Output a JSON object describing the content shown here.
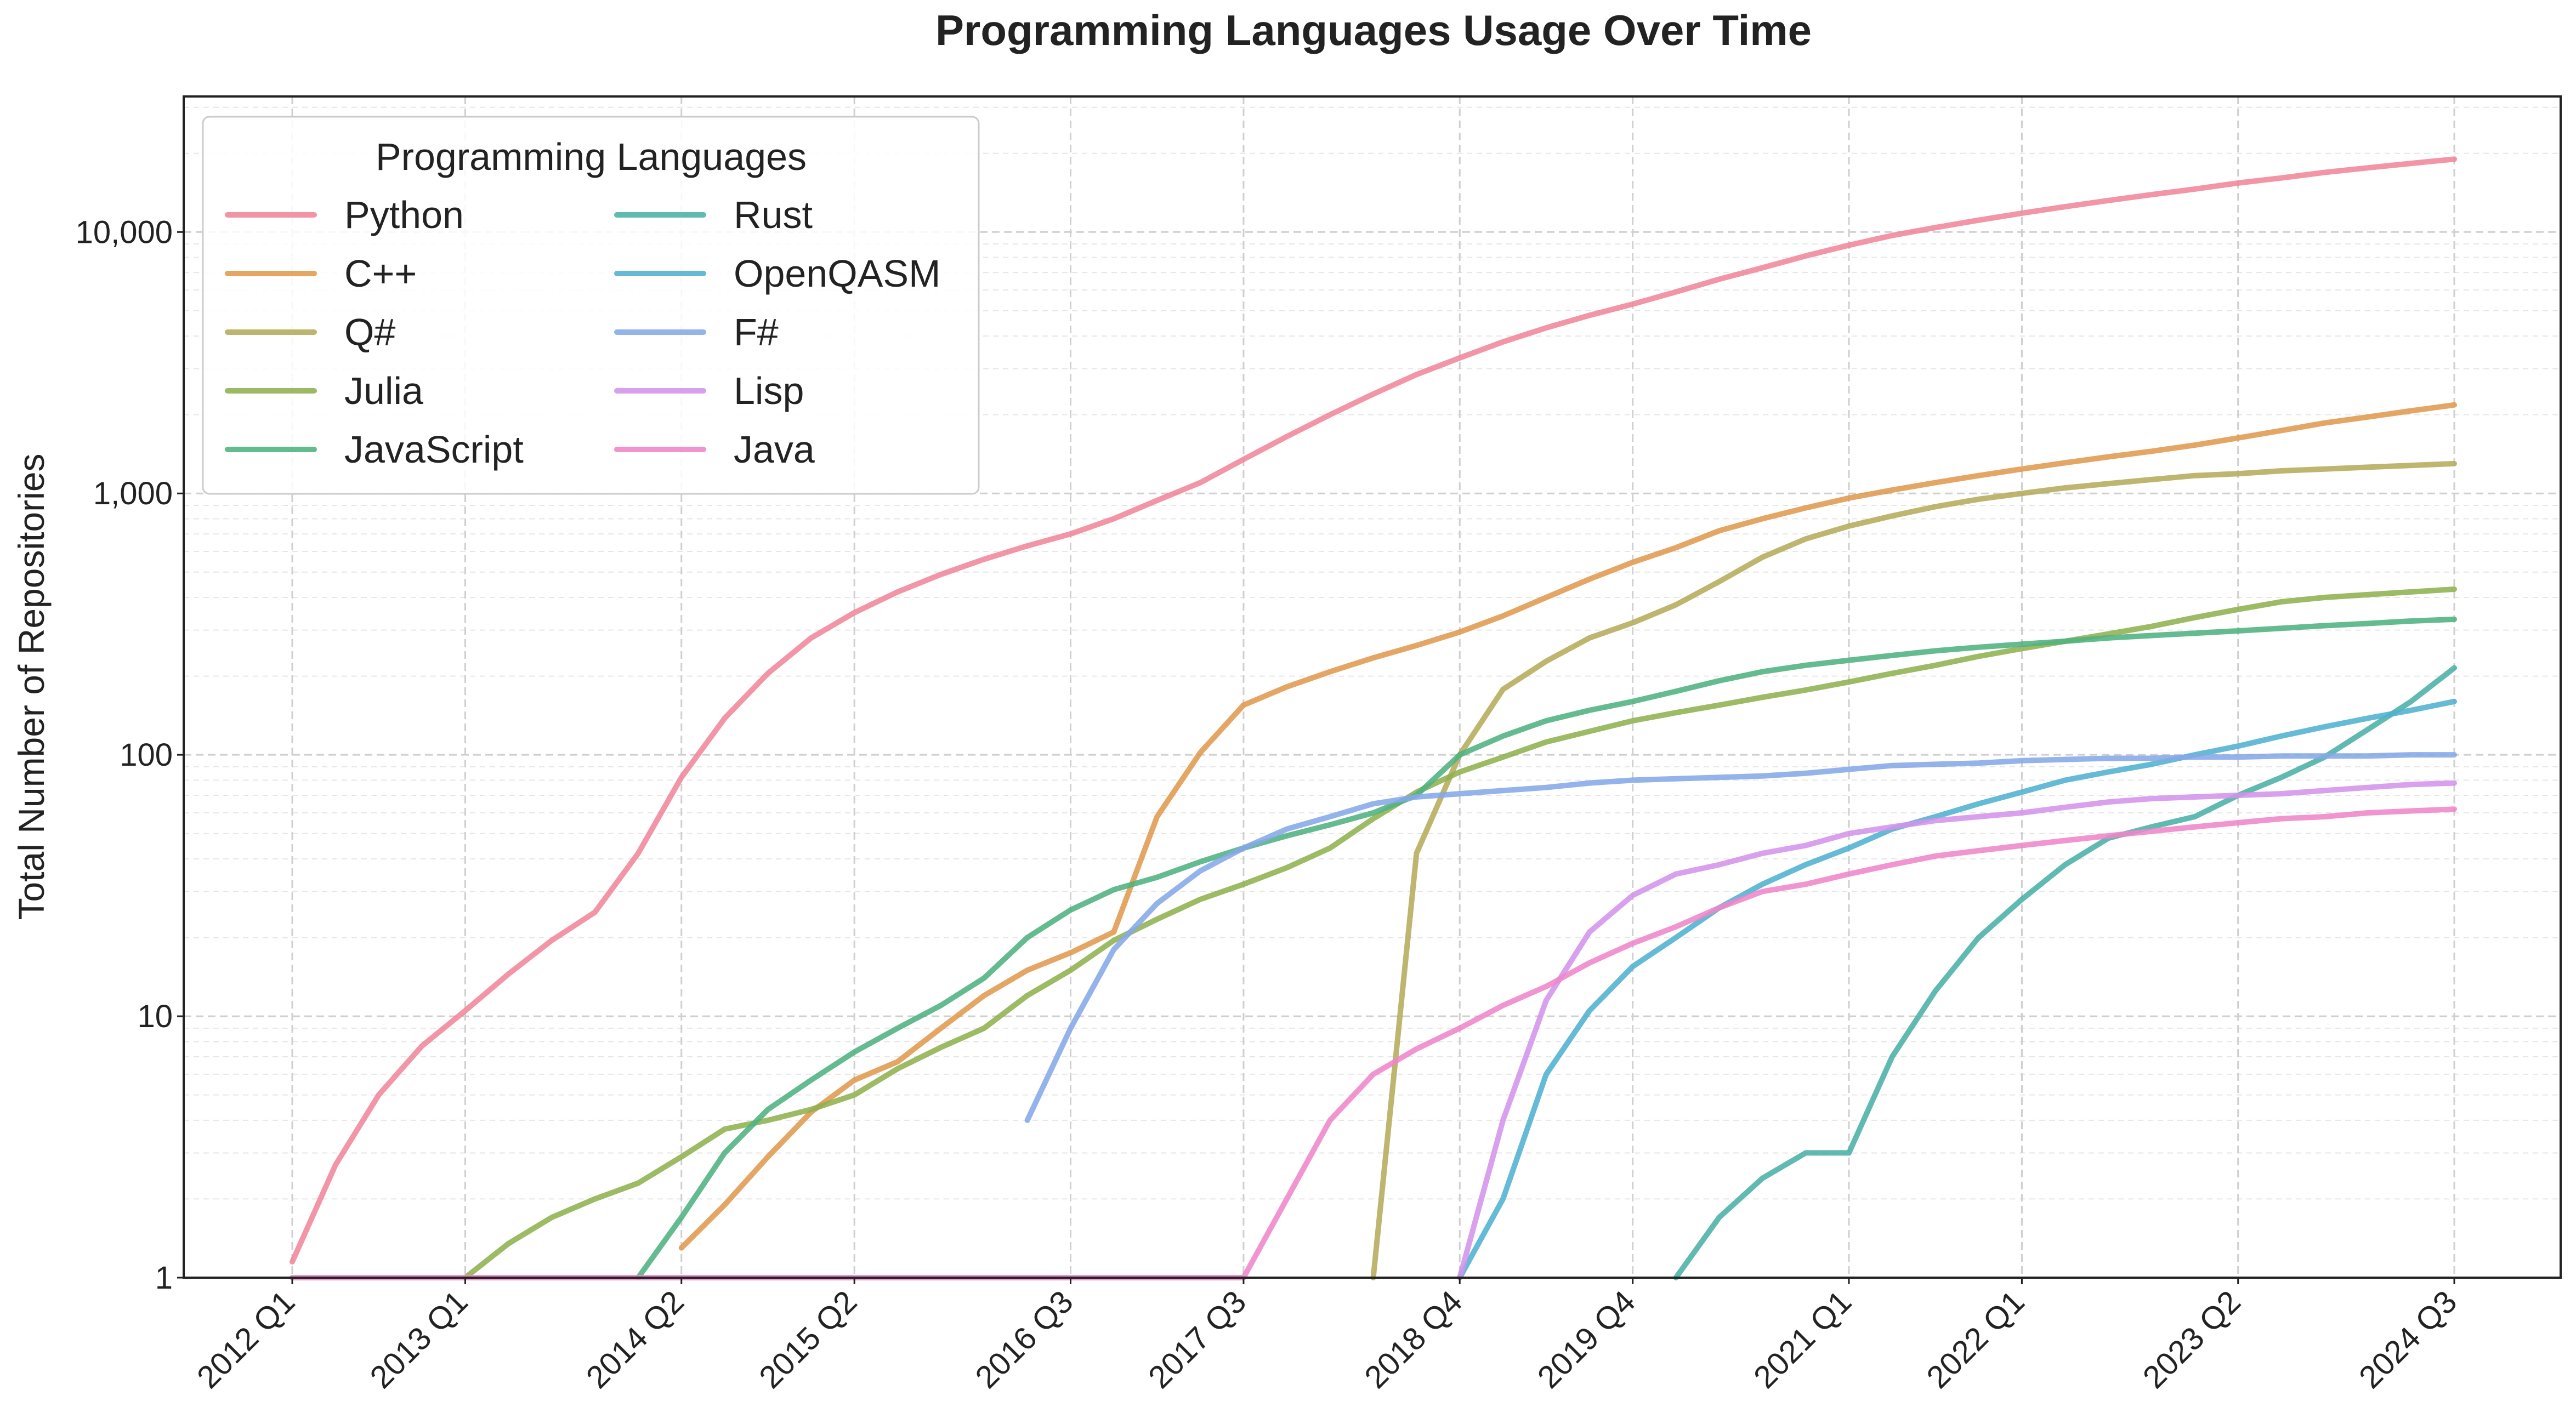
{
  "chart_data": {
    "type": "line",
    "title": "Programming Languages Usage Over Time",
    "xlabel": "",
    "ylabel": "Total Number of Repositories",
    "y_scale": "log",
    "ylim": [
      1,
      33000
    ],
    "grid": true,
    "legend": {
      "title": "Programming Languages",
      "placement": "top-left",
      "columns": 2
    },
    "x_tick_labels": [
      "2012 Q1",
      "2013 Q1",
      "2014 Q2",
      "2015 Q2",
      "2016 Q3",
      "2017 Q3",
      "2018 Q4",
      "2019 Q4",
      "2021 Q1",
      "2022 Q1",
      "2023 Q2",
      "2024 Q3"
    ],
    "y_tick_labels": [
      {
        "value": 1,
        "label": "1"
      },
      {
        "value": 10,
        "label": "10"
      },
      {
        "value": 100,
        "label": "100"
      },
      {
        "value": 1000,
        "label": "1,000"
      },
      {
        "value": 10000,
        "label": "10,000"
      }
    ],
    "x": [
      "2012 Q1",
      "2012 Q2",
      "2012 Q3",
      "2012 Q4",
      "2013 Q1",
      "2013 Q2",
      "2013 Q3",
      "2013 Q4",
      "2014 Q1",
      "2014 Q2",
      "2014 Q3",
      "2014 Q4",
      "2015 Q1",
      "2015 Q2",
      "2015 Q3",
      "2015 Q4",
      "2016 Q1",
      "2016 Q2",
      "2016 Q3",
      "2016 Q4",
      "2017 Q1",
      "2017 Q2",
      "2017 Q3",
      "2017 Q4",
      "2018 Q1",
      "2018 Q2",
      "2018 Q3",
      "2018 Q4",
      "2019 Q1",
      "2019 Q2",
      "2019 Q3",
      "2019 Q4",
      "2020 Q1",
      "2020 Q2",
      "2020 Q3",
      "2020 Q4",
      "2021 Q1",
      "2021 Q2",
      "2021 Q3",
      "2021 Q4",
      "2022 Q1",
      "2022 Q2",
      "2022 Q3",
      "2022 Q4",
      "2023 Q1",
      "2023 Q2",
      "2023 Q3",
      "2023 Q4",
      "2024 Q1",
      "2024 Q2",
      "2024 Q3"
    ],
    "series": [
      {
        "name": "Python",
        "color": "#f0869a",
        "values": [
          1.15,
          2.7,
          5,
          7.7,
          10.5,
          14.5,
          19.5,
          25,
          42,
          82,
          138,
          205,
          280,
          350,
          420,
          490,
          560,
          630,
          700,
          800,
          940,
          1100,
          1350,
          1650,
          2000,
          2400,
          2850,
          3300,
          3800,
          4300,
          4800,
          5300,
          5900,
          6600,
          7300,
          8100,
          8900,
          9700,
          10400,
          11100,
          11800,
          12500,
          13200,
          13900,
          14600,
          15400,
          16100,
          16900,
          17600,
          18300,
          19000
        ]
      },
      {
        "name": "C++",
        "color": "#e09a4e",
        "values": [
          null,
          null,
          null,
          null,
          null,
          null,
          null,
          null,
          null,
          1.3,
          1.9,
          2.9,
          4.3,
          5.7,
          6.7,
          9,
          12,
          15,
          17.5,
          21,
          58,
          102,
          155,
          182,
          208,
          235,
          262,
          295,
          340,
          400,
          470,
          545,
          620,
          720,
          800,
          880,
          960,
          1030,
          1100,
          1170,
          1240,
          1310,
          1380,
          1450,
          1530,
          1630,
          1740,
          1860,
          1960,
          2070,
          2180
        ]
      },
      {
        "name": "Q#",
        "color": "#b5ab5b",
        "values": [
          null,
          null,
          null,
          null,
          null,
          null,
          null,
          null,
          null,
          null,
          null,
          null,
          null,
          null,
          null,
          null,
          null,
          null,
          null,
          null,
          null,
          null,
          null,
          null,
          null,
          1,
          42,
          100,
          178,
          228,
          280,
          320,
          375,
          460,
          570,
          670,
          750,
          820,
          890,
          950,
          1000,
          1050,
          1090,
          1130,
          1170,
          1190,
          1220,
          1240,
          1260,
          1280,
          1300
        ]
      },
      {
        "name": "Julia",
        "color": "#90b04e",
        "values": [
          null,
          null,
          null,
          null,
          1.0,
          1.35,
          1.7,
          2.0,
          2.3,
          2.9,
          3.7,
          4.0,
          4.4,
          5,
          6.3,
          7.6,
          9,
          12,
          15,
          19.5,
          23.5,
          28,
          32,
          37,
          44,
          57,
          72,
          86,
          98,
          112,
          123,
          135,
          145,
          155,
          166,
          177,
          190,
          205,
          220,
          238,
          255,
          272,
          290,
          310,
          335,
          360,
          385,
          400,
          410,
          420,
          430
        ]
      },
      {
        "name": "JavaScript",
        "color": "#4fb27f",
        "values": [
          null,
          null,
          null,
          null,
          null,
          null,
          null,
          null,
          1,
          1.7,
          3,
          4.4,
          5.7,
          7.3,
          9,
          11,
          14,
          20,
          25.5,
          30.5,
          34,
          39,
          44,
          49,
          54,
          60,
          70,
          100,
          118,
          135,
          148,
          160,
          175,
          192,
          208,
          220,
          230,
          240,
          250,
          258,
          265,
          272,
          280,
          286,
          292,
          298,
          305,
          312,
          318,
          325,
          330
        ]
      },
      {
        "name": "Rust",
        "color": "#4ab1a6",
        "values": [
          null,
          null,
          null,
          null,
          null,
          null,
          null,
          null,
          null,
          null,
          null,
          null,
          null,
          null,
          null,
          null,
          null,
          null,
          null,
          null,
          null,
          null,
          null,
          null,
          null,
          null,
          null,
          null,
          null,
          null,
          null,
          null,
          1,
          1.7,
          2.4,
          3,
          3,
          7,
          12.5,
          20,
          28,
          38,
          48,
          53,
          58,
          70,
          82,
          98,
          125,
          160,
          215
        ]
      },
      {
        "name": "OpenQASM",
        "color": "#50b0d0",
        "values": [
          null,
          null,
          null,
          null,
          null,
          null,
          null,
          null,
          null,
          null,
          null,
          null,
          null,
          null,
          null,
          null,
          null,
          null,
          null,
          null,
          null,
          null,
          null,
          null,
          null,
          null,
          null,
          1,
          2,
          6,
          10.5,
          15.5,
          20,
          26,
          32,
          38,
          44,
          52,
          58,
          65,
          72,
          80,
          86,
          92,
          100,
          108,
          118,
          128,
          138,
          148,
          160
        ]
      },
      {
        "name": "F#",
        "color": "#85a9e8",
        "values": [
          null,
          null,
          null,
          null,
          null,
          null,
          null,
          null,
          null,
          null,
          null,
          null,
          null,
          null,
          null,
          null,
          null,
          4,
          9,
          18,
          27,
          36,
          44,
          52,
          58,
          65,
          69,
          71,
          73,
          75,
          78,
          80,
          81,
          82,
          83,
          85,
          88,
          91,
          92,
          93,
          95,
          96,
          97,
          97,
          98,
          98,
          99,
          99,
          99,
          100,
          100
        ]
      },
      {
        "name": "Lisp",
        "color": "#d393ea",
        "values": [
          null,
          null,
          null,
          null,
          null,
          null,
          null,
          null,
          null,
          null,
          null,
          null,
          null,
          null,
          null,
          null,
          null,
          null,
          null,
          null,
          null,
          null,
          null,
          null,
          null,
          null,
          null,
          1,
          4,
          11.5,
          21,
          29,
          35,
          38,
          42,
          45,
          50,
          53,
          56,
          58,
          60,
          63,
          66,
          68,
          69,
          70,
          71,
          73,
          75,
          77,
          78
        ]
      },
      {
        "name": "Java",
        "color": "#ee86c8",
        "values": [
          1,
          1,
          1,
          1,
          1,
          1,
          1,
          1,
          1,
          1,
          1,
          1,
          1,
          1,
          1,
          1,
          1,
          1,
          1,
          1,
          1,
          1,
          1,
          2,
          4,
          6,
          7.5,
          9,
          11,
          13,
          16,
          19,
          22,
          26,
          30,
          32,
          35,
          38,
          41,
          43,
          45,
          47,
          49,
          51,
          53,
          55,
          57,
          58,
          60,
          61,
          62
        ]
      }
    ]
  }
}
